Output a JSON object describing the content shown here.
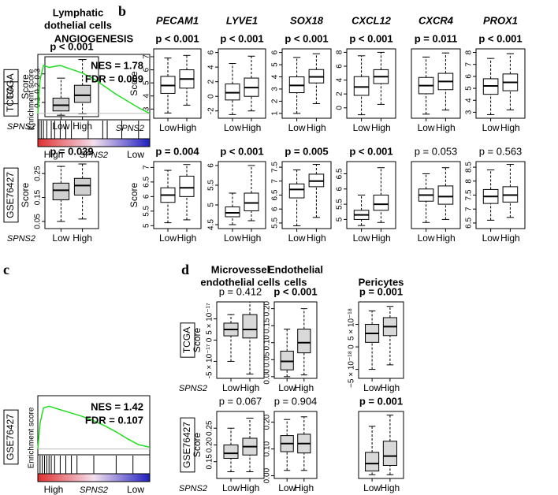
{
  "panel_letters": [
    "b",
    "c",
    "d"
  ],
  "chart_data": [
    {
      "type": "box",
      "title": [
        "Lymphatic",
        "dothelial cells"
      ],
      "subtitle": "p < 0.001",
      "subtitle_bold": true,
      "row_label": "TCGA",
      "ylabel": "Score",
      "xlabel": "SPNS2",
      "categories": [
        "Low",
        "High"
      ],
      "boxes": [
        [
          0.01,
          0.04,
          0.08,
          0.13,
          0.27
        ],
        [
          0.02,
          0.1,
          0.15,
          0.22,
          0.4
        ]
      ],
      "ylim": [
        0,
        0.42
      ],
      "yticks": [
        0.1,
        0.2,
        0.3
      ]
    },
    {
      "type": "box",
      "title": [
        "PECAM1"
      ],
      "subtitle": "p < 0.001",
      "subtitle_bold": true,
      "ylabel": "Score",
      "xlabel": "SPNS2",
      "categories": [
        "Low",
        "High"
      ],
      "boxes": [
        [
          2.7,
          4.2,
          4.8,
          5.5,
          6.9
        ],
        [
          3.3,
          4.6,
          5.3,
          6.0,
          7.1
        ]
      ],
      "ylim": [
        2.3,
        7.6
      ],
      "yticks": [
        3,
        4,
        5,
        6,
        7
      ]
    },
    {
      "type": "box",
      "title": [
        "LYVE1"
      ],
      "subtitle": "p < 0.001",
      "subtitle_bold": true,
      "categories": [
        "Low",
        "High"
      ],
      "boxes": [
        [
          -2.5,
          -0.5,
          0.5,
          1.7,
          4.5
        ],
        [
          -2,
          0,
          1.2,
          2.5,
          5.5
        ]
      ],
      "ylim": [
        -3,
        6.5
      ],
      "yticks": [
        -2,
        0,
        2,
        4,
        6
      ]
    },
    {
      "type": "box",
      "title": [
        "SOX18"
      ],
      "subtitle": "p < 0.001",
      "subtitle_bold": true,
      "categories": [
        "Low",
        "High"
      ],
      "boxes": [
        [
          1,
          2.7,
          3.3,
          4,
          5.6
        ],
        [
          1.8,
          3.5,
          4,
          4.6,
          5.9
        ]
      ],
      "ylim": [
        0.6,
        6.3
      ],
      "yticks": [
        1,
        2,
        3,
        4,
        5,
        6
      ]
    },
    {
      "type": "box",
      "title": [
        "CXCL12"
      ],
      "subtitle": "p < 0.001",
      "subtitle_bold": true,
      "categories": [
        "Low",
        "High"
      ],
      "boxes": [
        [
          -1,
          1.8,
          3,
          4.5,
          7.5
        ],
        [
          0.5,
          3.5,
          4.5,
          5.5,
          8
        ]
      ],
      "ylim": [
        -1.5,
        8.5
      ],
      "yticks": [
        0,
        2,
        4,
        6,
        8
      ]
    },
    {
      "type": "box",
      "title": [
        "CXCR4"
      ],
      "subtitle": "p = 0.011",
      "subtitle_bold": true,
      "categories": [
        "Low",
        "High"
      ],
      "boxes": [
        [
          1,
          3.5,
          4.5,
          5.5,
          8
        ],
        [
          1.5,
          4,
          5,
          6,
          8.5
        ]
      ],
      "ylim": [
        0.5,
        9
      ]
    },
    {
      "type": "box",
      "title": [
        "PROX1"
      ],
      "subtitle": "p < 0.001",
      "subtitle_bold": true,
      "categories": [
        "Low",
        "High"
      ],
      "boxes": [
        [
          2.8,
          4.5,
          5.2,
          5.8,
          7.5
        ],
        [
          3.2,
          4.8,
          5.5,
          6.2,
          7.9
        ]
      ],
      "ylim": [
        2.5,
        8.3
      ],
      "yticks": [
        3,
        4,
        5,
        6,
        7,
        8
      ]
    },
    {
      "type": "box",
      "subtitle": "p = 0.039",
      "subtitle_bold": true,
      "row_label": "GSE76427",
      "ylabel": "Score",
      "xlabel": "SPNS2",
      "categories": [
        "Low",
        "High"
      ],
      "boxes": [
        [
          0.05,
          0.14,
          0.18,
          0.21,
          0.28
        ],
        [
          0.06,
          0.16,
          0.2,
          0.23,
          0.29
        ]
      ],
      "ylim": [
        0.02,
        0.3
      ],
      "yticks": [
        0.05,
        0.15,
        0.25
      ]
    },
    {
      "type": "box",
      "subtitle": "p = 0.004",
      "subtitle_bold": true,
      "ylabel": "Score",
      "categories": [
        "Low",
        "High"
      ],
      "boxes": [
        [
          5.1,
          5.8,
          6.05,
          6.3,
          6.9
        ],
        [
          5.2,
          6,
          6.3,
          6.7,
          7.1
        ]
      ],
      "ylim": [
        4.9,
        7.2
      ],
      "yticks": [
        5,
        5.5,
        6,
        6.5,
        7
      ]
    },
    {
      "type": "box",
      "subtitle": "p < 0.001",
      "subtitle_bold": true,
      "categories": [
        "Low",
        "High"
      ],
      "boxes": [
        [
          4.5,
          4.7,
          4.8,
          4.95,
          5.3
        ],
        [
          4.6,
          4.85,
          5.05,
          5.3,
          6.0
        ]
      ],
      "ylim": [
        4.4,
        6.1
      ],
      "yticks": [
        4.5,
        5,
        5.5,
        6
      ]
    },
    {
      "type": "box",
      "subtitle": "p = 0.005",
      "subtitle_bold": true,
      "categories": [
        "Low",
        "High"
      ],
      "boxes": [
        [
          5.4,
          6.4,
          6.7,
          6.9,
          7.4
        ],
        [
          5.7,
          6.8,
          7,
          7.25,
          7.6
        ]
      ],
      "ylim": [
        5.3,
        7.7
      ],
      "yticks": [
        5.5,
        6,
        6.5,
        7,
        7.5
      ]
    },
    {
      "type": "box",
      "subtitle": "p < 0.001",
      "subtitle_bold": true,
      "categories": [
        "Low",
        "High"
      ],
      "boxes": [
        [
          4.8,
          5.0,
          5.15,
          5.3,
          5.8
        ],
        [
          4.9,
          5.3,
          5.5,
          5.8,
          6.7
        ]
      ],
      "ylim": [
        4.7,
        6.9
      ],
      "yticks": [
        5,
        5.5,
        6,
        6.5
      ]
    },
    {
      "type": "box",
      "subtitle": "p = 0.053",
      "subtitle_bold": false,
      "categories": [
        "Low",
        "High"
      ],
      "boxes": [
        [
          4.2,
          4.9,
          5.1,
          5.3,
          5.8
        ],
        [
          4.3,
          4.8,
          5.05,
          5.4,
          6.0
        ]
      ],
      "ylim": [
        4.0,
        6.2
      ]
    },
    {
      "type": "box",
      "subtitle": "p = 0.563",
      "subtitle_bold": false,
      "categories": [
        "Low",
        "High"
      ],
      "boxes": [
        [
          6.6,
          7.2,
          7.45,
          7.7,
          8.4
        ],
        [
          6.7,
          7.25,
          7.5,
          7.8,
          8.6
        ]
      ],
      "ylim": [
        6.3,
        8.7
      ],
      "yticks": [
        6.5,
        7,
        7.5,
        8,
        8.5
      ]
    },
    {
      "type": "gsea",
      "title": [
        "ANGIOGENESIS"
      ],
      "row_label": "TCGA",
      "ylabel": "Enrichment score",
      "annotation": [
        "NES = 1.78",
        "FDR = 0.009"
      ],
      "color": "#22dd22",
      "x": [
        0,
        0.02,
        0.05,
        0.1,
        0.2,
        0.3,
        0.4,
        0.5,
        0.6,
        0.7,
        0.8,
        0.9,
        1
      ],
      "values": [
        0,
        0.35,
        0.5,
        0.48,
        0.5,
        0.46,
        0.42,
        0.36,
        0.28,
        0.2,
        0.13,
        0.06,
        0
      ],
      "ylim": [
        -0.05,
        0.55
      ],
      "hits": [
        0.01,
        0.03,
        0.05,
        0.08,
        0.12,
        0.15,
        0.2,
        0.25,
        0.3,
        0.45,
        0.58,
        0.62,
        0.75,
        0.9
      ],
      "categories": [
        "High",
        "Low"
      ],
      "xlabel": "SPNS2"
    },
    {
      "type": "gsea",
      "row_label": "GSE76427",
      "ylabel": "Enrichment score",
      "annotation": [
        "NES = 1.42",
        "FDR = 0.107"
      ],
      "color": "#22dd22",
      "x": [
        0,
        0.02,
        0.05,
        0.1,
        0.2,
        0.3,
        0.4,
        0.5,
        0.6,
        0.7,
        0.8,
        0.9,
        1
      ],
      "values": [
        0,
        0.3,
        0.48,
        0.5,
        0.46,
        0.42,
        0.38,
        0.33,
        0.27,
        0.2,
        0.12,
        0.05,
        0.02
      ],
      "ylim": [
        -0.05,
        0.55
      ],
      "hits": [
        0.02,
        0.04,
        0.06,
        0.08,
        0.1,
        0.12,
        0.15,
        0.2,
        0.25,
        0.3,
        0.35,
        0.5,
        0.7,
        0.85
      ],
      "categories": [
        "High",
        "Low"
      ],
      "xlabel": "SPNS2"
    },
    {
      "type": "box",
      "title": [
        "Microvessel",
        "endothelial cells"
      ],
      "subtitle": "p = 0.412",
      "subtitle_bold": false,
      "row_label": "TCGA",
      "ylabel": "Score",
      "xlabel": "SPNS2",
      "fill": "#d9d9d9",
      "categories": [
        "Low",
        "High"
      ],
      "boxes": [
        [
          -5e-17,
          1e-17,
          2.5e-17,
          4e-17,
          6e-17
        ],
        [
          -8e-17,
          5e-18,
          2.5e-17,
          6e-17,
          9e-17
        ]
      ],
      "ylim": [
        -9e-17,
        9e-17
      ],
      "yticks": [
        {
          "value": -5e-17,
          "label": "-5 × 10⁻¹⁷"
        },
        0,
        {
          "value": 5e-17,
          "label": "5 × 10⁻¹⁷"
        }
      ]
    },
    {
      "type": "box",
      "title": [
        "Endothelial",
        "cells"
      ],
      "subtitle": "p < 0.001",
      "subtitle_bold": true,
      "fill": "#d9d9d9",
      "categories": [
        "Low",
        "High"
      ],
      "boxes": [
        [
          0,
          0.02,
          0.045,
          0.075,
          0.14
        ],
        [
          0.005,
          0.07,
          0.1,
          0.14,
          0.2
        ]
      ],
      "ylim": [
        -0.005,
        0.22
      ],
      "yticks": [
        {
          "value": 0,
          "label": "0.00"
        },
        {
          "value": 0.05,
          "label": "0.05"
        },
        {
          "value": 0.1,
          "label": "0.10"
        },
        {
          "value": 0.15,
          "label": "0.15"
        },
        {
          "value": 0.2,
          "label": "0.20"
        }
      ]
    },
    {
      "type": "box",
      "title": [
        "Pericytes"
      ],
      "subtitle": "p = 0.001",
      "subtitle_bold": true,
      "fill": "#d9d9d9",
      "categories": [
        "Low",
        "High"
      ],
      "boxes": [
        [
          -5e-18,
          1e-18,
          3e-18,
          5e-18,
          8e-18
        ],
        [
          -4e-18,
          2.5e-18,
          4.5e-18,
          6.5e-18,
          9e-18
        ]
      ],
      "ylim": [
        -7e-18,
        1e-17
      ],
      "yticks": [
        {
          "value": -5e-18,
          "label": "−5 × 10⁻¹⁸"
        },
        0,
        {
          "value": 5e-18,
          "label": "5 × 10⁻¹⁸"
        }
      ]
    },
    {
      "type": "box",
      "subtitle": "p = 0.067",
      "subtitle_bold": false,
      "row_label": "GSE76427",
      "ylabel": "Score",
      "xlabel": "SPNS2",
      "fill": "#d9d9d9",
      "categories": [
        "Low",
        "High"
      ],
      "boxes": [
        [
          0.12,
          0.16,
          0.175,
          0.2,
          0.25
        ],
        [
          0.12,
          0.17,
          0.195,
          0.22,
          0.28
        ]
      ],
      "ylim": [
        0.1,
        0.3
      ],
      "yticks": [
        0.15,
        {
          "value": 0.2,
          "label": "0.20"
        },
        0.25
      ]
    },
    {
      "type": "box",
      "subtitle": "p = 0.904",
      "subtitle_bold": false,
      "fill": "#d9d9d9",
      "categories": [
        "Low",
        "High"
      ],
      "boxes": [
        [
          0.02,
          0.09,
          0.12,
          0.15,
          0.21
        ],
        [
          0.02,
          0.085,
          0.12,
          0.155,
          0.22
        ]
      ],
      "ylim": [
        -0.01,
        0.24
      ],
      "yticks": [
        {
          "value": 0,
          "label": "0.00"
        },
        {
          "value": 0.1,
          "label": "0.10"
        },
        {
          "value": 0.2,
          "label": "0.20"
        }
      ]
    },
    {
      "type": "box",
      "subtitle": "p = 0.001",
      "subtitle_bold": true,
      "fill": "#d9d9d9",
      "categories": [
        "Low",
        "High"
      ],
      "boxes": [
        [
          0,
          0.01,
          0.03,
          0.06,
          0.13
        ],
        [
          0,
          0.025,
          0.05,
          0.09,
          0.16
        ]
      ],
      "ylim": [
        -0.01,
        0.17
      ]
    }
  ]
}
